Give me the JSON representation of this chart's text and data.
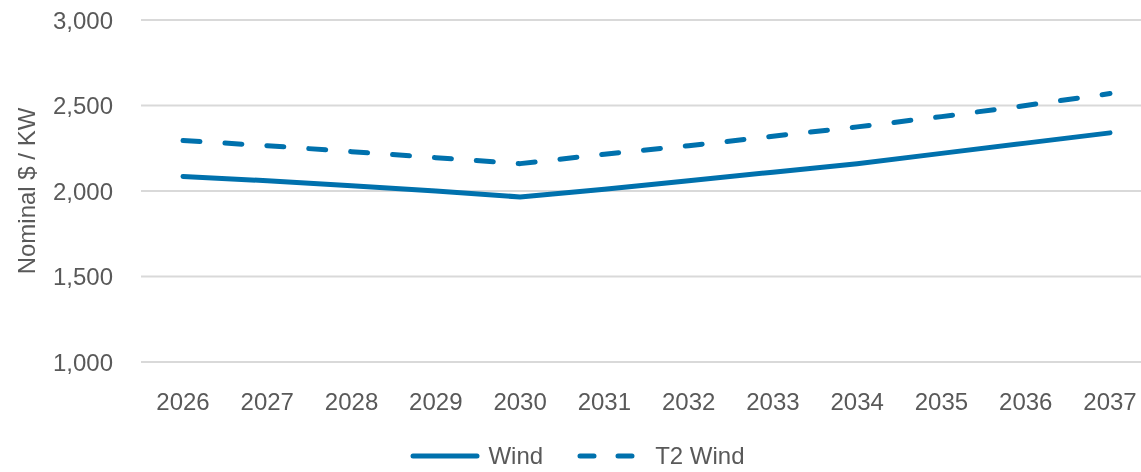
{
  "chart_data": {
    "type": "line",
    "categories": [
      "2026",
      "2027",
      "2028",
      "2029",
      "2030",
      "2031",
      "2032",
      "2033",
      "2034",
      "2035",
      "2036",
      "2037"
    ],
    "series": [
      {
        "name": "Wind",
        "color": "#0071ad",
        "line_style": "solid",
        "values": [
          2085,
          2060,
          2030,
          2000,
          1965,
          2010,
          2060,
          2110,
          2160,
          2220,
          2280,
          2340
        ]
      },
      {
        "name": "T2 Wind",
        "color": "#0071ad",
        "line_style": "dashed",
        "values": [
          2295,
          2265,
          2230,
          2195,
          2160,
          2215,
          2265,
          2320,
          2375,
          2435,
          2500,
          2570
        ]
      }
    ],
    "ylabel": "Nominal $ / KW",
    "ylim": [
      1000,
      3000
    ],
    "yticks": [
      {
        "value": 1000,
        "label": "1,000"
      },
      {
        "value": 1500,
        "label": "1,500"
      },
      {
        "value": 2000,
        "label": "2,000"
      },
      {
        "value": 2500,
        "label": "2,500"
      },
      {
        "value": 3000,
        "label": "3,000"
      }
    ],
    "grid": "y",
    "legend": "bottom",
    "marker": "none"
  }
}
